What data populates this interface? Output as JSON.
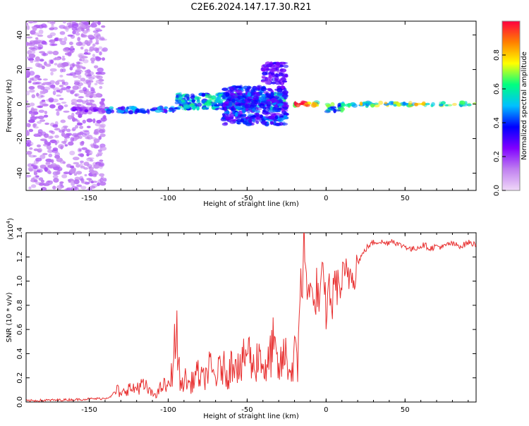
{
  "chart_data": [
    {
      "type": "heatmap",
      "title": "C2E6.2024.147.17.30.R21",
      "xlabel": "Height of straight line (km)",
      "ylabel": "Frequency (Hz)",
      "xlim": [
        -190,
        95
      ],
      "ylim": [
        -50,
        48
      ],
      "xticks": [
        -150,
        -100,
        -50,
        0,
        50
      ],
      "yticks": [
        -40,
        -20,
        0,
        20,
        40
      ],
      "grid": false,
      "colorbar": {
        "label": "Normalized spectral amplitude",
        "range": [
          0.0,
          1.0
        ],
        "ticks": [
          "0.0",
          "0.2",
          "0.4",
          "0.6",
          "0.8"
        ],
        "colors": [
          "#f0d8f8",
          "#c080f0",
          "#8000ff",
          "#0000ff",
          "#00c0ff",
          "#00ff80",
          "#ffff00",
          "#ff8000",
          "#ff0040"
        ]
      },
      "features": [
        {
          "x_range": [
            -190,
            -140
          ],
          "freq": [
            -50,
            48
          ],
          "amplitude": 0.15
        },
        {
          "x_range": [
            -160,
            -140
          ],
          "freq": [
            -4,
            -2
          ],
          "amplitude": 0.25
        },
        {
          "x_range": [
            -140,
            -95
          ],
          "freq": [
            -5,
            -2
          ],
          "amplitude": 0.45
        },
        {
          "x_range": [
            -95,
            -25
          ],
          "freq": [
            -3,
            6
          ],
          "amplitude": 0.55
        },
        {
          "x_range": [
            -65,
            -25
          ],
          "freq": [
            -12,
            10
          ],
          "amplitude": 0.4
        },
        {
          "x_range": [
            -40,
            -25
          ],
          "freq": [
            12,
            24
          ],
          "amplitude": 0.3
        },
        {
          "x_range": [
            -20,
            -5
          ],
          "freq": [
            -1,
            1
          ],
          "amplitude": 0.95
        },
        {
          "x_range": [
            0,
            10
          ],
          "freq": [
            -5,
            0
          ],
          "amplitude": 0.6
        },
        {
          "x_range": [
            10,
            95
          ],
          "freq": [
            -1,
            1
          ],
          "amplitude": 0.7
        }
      ]
    },
    {
      "type": "line",
      "xlabel": "Height of straight line (km)",
      "ylabel": "SNR (10 * v/v)",
      "yscale_note": "(x10",
      "yscale_exp": "4",
      "scale_factor": 10000,
      "xlim": [
        -190,
        95
      ],
      "ylim": [
        0.0,
        1.4
      ],
      "xticks": [
        -150,
        -100,
        -50,
        0,
        50
      ],
      "yticks": [
        "0.0",
        "0.2",
        "0.4",
        "0.6",
        "0.8",
        "1.0",
        "1.2",
        "1.4"
      ],
      "grid": false,
      "series": [
        {
          "color": "#e83030",
          "x": [
            -190,
            -160,
            -140,
            -136,
            -132,
            -130,
            -126,
            -122,
            -118,
            -114,
            -110,
            -106,
            -104,
            -100,
            -98,
            -96,
            -95,
            -94,
            -92,
            -90,
            -86,
            -82,
            -78,
            -74,
            -70,
            -66,
            -62,
            -58,
            -54,
            -50,
            -46,
            -42,
            -38,
            -34,
            -30,
            -26,
            -22,
            -20,
            -18,
            -17,
            -16,
            -15,
            -14,
            -12,
            -10,
            -8,
            -6,
            -4,
            -2,
            0,
            2,
            4,
            6,
            8,
            10,
            14,
            18,
            22,
            26,
            30,
            34,
            38,
            42,
            46,
            50,
            54,
            58,
            62,
            66,
            70,
            74,
            78,
            82,
            86,
            90,
            95
          ],
          "y": [
            0.01,
            0.02,
            0.03,
            0.05,
            0.1,
            0.05,
            0.12,
            0.1,
            0.14,
            0.12,
            0.06,
            0.08,
            0.14,
            0.12,
            0.22,
            0.45,
            0.6,
            0.4,
            0.12,
            0.2,
            0.14,
            0.24,
            0.18,
            0.28,
            0.2,
            0.3,
            0.22,
            0.4,
            0.25,
            0.45,
            0.28,
            0.42,
            0.22,
            0.48,
            0.25,
            0.4,
            0.22,
            0.45,
            0.22,
            0.8,
            1.1,
            0.9,
            1.4,
            0.8,
            1.1,
            0.7,
            0.95,
            0.8,
            1.05,
            0.75,
            0.95,
            0.8,
            1.05,
            0.9,
            1.0,
            1.05,
            1.1,
            1.2,
            1.28,
            1.32,
            1.33,
            1.31,
            1.34,
            1.3,
            1.29,
            1.26,
            1.28,
            1.3,
            1.27,
            1.29,
            1.28,
            1.31,
            1.3,
            1.29,
            1.32,
            1.3
          ]
        }
      ]
    }
  ]
}
